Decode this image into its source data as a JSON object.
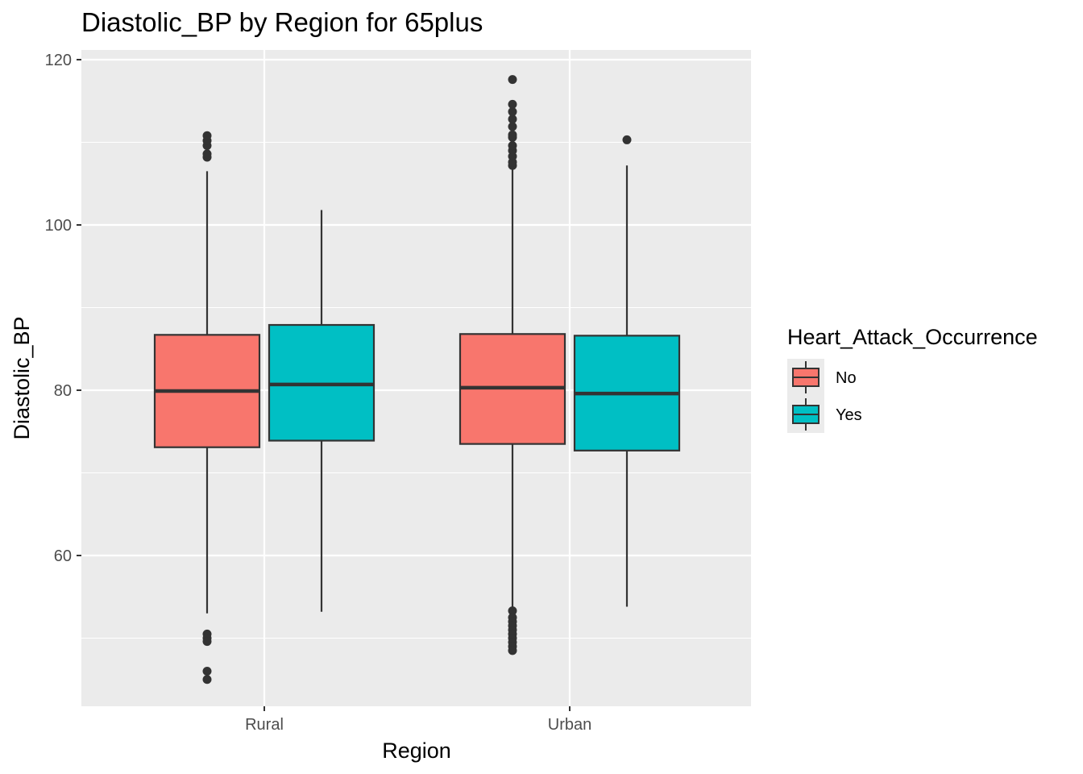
{
  "chart_data": {
    "type": "boxplot",
    "title": "Diastolic_BP by Region for 65plus",
    "xlabel": "Region",
    "ylabel": "Diastolic_BP",
    "categories": [
      "Rural",
      "Urban"
    ],
    "ylim": [
      42,
      120.5
    ],
    "yticks": [
      60,
      80,
      100,
      120
    ],
    "grid": true,
    "legend": {
      "title": "Heart_Attack_Occurrence",
      "position": "right",
      "entries": [
        {
          "label": "No",
          "color": "#F8766D"
        },
        {
          "label": "Yes",
          "color": "#00BFC4"
        }
      ]
    },
    "series": [
      {
        "name": "No",
        "color": "#F8766D",
        "boxes": [
          {
            "category": "Rural",
            "whisker_low": 53.0,
            "q1": 73.1,
            "median": 79.9,
            "q3": 86.7,
            "whisker_high": 106.5,
            "outliers": [
              50.5,
              50.0,
              49.6,
              46.0,
              45.0,
              108.2,
              108.6,
              109.6,
              110.2,
              110.8
            ]
          },
          {
            "category": "Urban",
            "whisker_low": 53.5,
            "q1": 73.5,
            "median": 80.3,
            "q3": 86.8,
            "whisker_high": 107.0,
            "outliers": [
              53.3,
              52.5,
              52.0,
              51.5,
              51.0,
              50.5,
              50.0,
              49.5,
              49.0,
              48.5,
              107.2,
              107.6,
              108.3,
              109.0,
              109.6,
              110.6,
              110.9,
              111.9,
              112.8,
              113.7,
              114.6,
              117.6
            ]
          }
        ]
      },
      {
        "name": "Yes",
        "color": "#00BFC4",
        "boxes": [
          {
            "category": "Rural",
            "whisker_low": 53.2,
            "q1": 73.9,
            "median": 80.7,
            "q3": 87.9,
            "whisker_high": 101.8,
            "outliers": []
          },
          {
            "category": "Urban",
            "whisker_low": 53.8,
            "q1": 72.7,
            "median": 79.6,
            "q3": 86.6,
            "whisker_high": 107.2,
            "outliers": [
              110.3
            ]
          }
        ]
      }
    ]
  }
}
